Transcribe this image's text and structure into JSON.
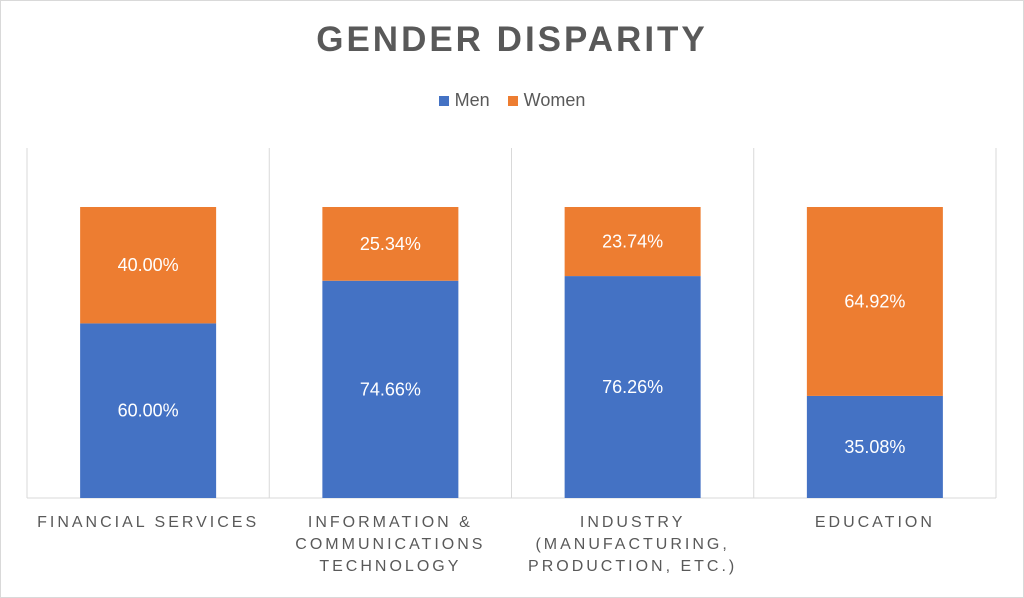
{
  "chart_data": {
    "type": "bar",
    "stacked": true,
    "title": "GENDER DISPARITY",
    "categories": [
      "FINANCIAL SERVICES",
      "INFORMATION & COMMUNICATIONS TECHNOLOGY",
      "INDUSTRY (MANUFACTURING, PRODUCTION, ETC.)",
      "EDUCATION"
    ],
    "category_lines": [
      [
        "FINANCIAL SERVICES"
      ],
      [
        "INFORMATION &",
        "COMMUNICATIONS",
        "TECHNOLOGY"
      ],
      [
        "INDUSTRY",
        "(MANUFACTURING,",
        "PRODUCTION, ETC.)"
      ],
      [
        "EDUCATION"
      ]
    ],
    "series": [
      {
        "name": "Men",
        "color": "#4472C4",
        "values": [
          60.0,
          74.66,
          76.26,
          35.08
        ],
        "labels": [
          "60.00%",
          "74.66%",
          "76.26%",
          "35.08%"
        ]
      },
      {
        "name": "Women",
        "color": "#ED7D31",
        "values": [
          40.0,
          25.34,
          23.74,
          64.92
        ],
        "labels": [
          "40.00%",
          "25.34%",
          "23.74%",
          "64.92%"
        ]
      }
    ],
    "ylim": [
      0,
      100
    ],
    "legend_position": "top",
    "grid": "vertical category separators"
  }
}
